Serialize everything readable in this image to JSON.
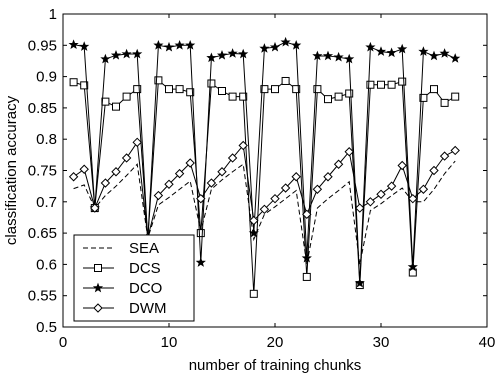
{
  "chart_data": {
    "type": "line",
    "title": "",
    "xlabel": "number of training chunks",
    "ylabel": "classification accuracy",
    "xlim": [
      0,
      40
    ],
    "ylim": [
      0.5,
      1
    ],
    "xticks": [
      "0",
      "10",
      "20",
      "30",
      "40"
    ],
    "yticks": [
      "0.5",
      "0.55",
      "0.6",
      "0.65",
      "0.7",
      "0.75",
      "0.8",
      "0.85",
      "0.9",
      "0.95",
      "1"
    ],
    "grid": false,
    "legend_position": "bottom-left",
    "x": [
      1,
      2,
      3,
      4,
      5,
      6,
      7,
      8,
      9,
      10,
      11,
      12,
      13,
      14,
      15,
      16,
      17,
      18,
      19,
      20,
      21,
      22,
      23,
      24,
      25,
      26,
      27,
      28,
      29,
      30,
      31,
      32,
      33,
      34,
      35,
      36,
      37
    ],
    "series": [
      {
        "name": "SEA",
        "marker": "none",
        "line": "dashed",
        "values": [
          0.721,
          0.727,
          0.69,
          0.71,
          0.725,
          0.742,
          0.76,
          0.642,
          0.695,
          0.707,
          0.72,
          0.733,
          0.653,
          0.72,
          0.735,
          0.748,
          0.76,
          0.64,
          0.68,
          0.692,
          0.705,
          0.718,
          0.6,
          0.69,
          0.705,
          0.718,
          0.732,
          0.6,
          0.686,
          0.697,
          0.71,
          0.722,
          0.7,
          0.7,
          0.72,
          0.745,
          0.765
        ]
      },
      {
        "name": "DCS",
        "marker": "square",
        "line": "solid",
        "values": [
          0.891,
          0.886,
          0.69,
          0.86,
          0.852,
          0.868,
          0.88,
          0.64,
          0.894,
          0.88,
          0.88,
          0.875,
          0.65,
          0.889,
          0.877,
          0.868,
          0.868,
          0.553,
          0.88,
          0.88,
          0.893,
          0.88,
          0.58,
          0.88,
          0.864,
          0.868,
          0.873,
          0.567,
          0.887,
          0.887,
          0.887,
          0.892,
          0.587,
          0.866,
          0.88,
          0.858,
          0.868
        ]
      },
      {
        "name": "DCO",
        "marker": "star",
        "line": "solid",
        "values": [
          0.951,
          0.948,
          0.69,
          0.928,
          0.934,
          0.936,
          0.936,
          0.64,
          0.95,
          0.947,
          0.95,
          0.95,
          0.603,
          0.93,
          0.934,
          0.937,
          0.936,
          0.65,
          0.945,
          0.947,
          0.955,
          0.95,
          0.61,
          0.933,
          0.933,
          0.931,
          0.928,
          0.57,
          0.947,
          0.94,
          0.938,
          0.944,
          0.596,
          0.94,
          0.933,
          0.937,
          0.929
        ]
      },
      {
        "name": "DWM",
        "marker": "diamond",
        "line": "solid",
        "values": [
          0.74,
          0.752,
          0.69,
          0.73,
          0.748,
          0.77,
          0.795,
          0.643,
          0.71,
          0.728,
          0.745,
          0.762,
          0.705,
          0.73,
          0.748,
          0.77,
          0.79,
          0.67,
          0.688,
          0.705,
          0.722,
          0.74,
          0.68,
          0.72,
          0.74,
          0.76,
          0.78,
          0.69,
          0.7,
          0.712,
          0.725,
          0.758,
          0.705,
          0.72,
          0.75,
          0.773,
          0.782
        ]
      }
    ]
  }
}
